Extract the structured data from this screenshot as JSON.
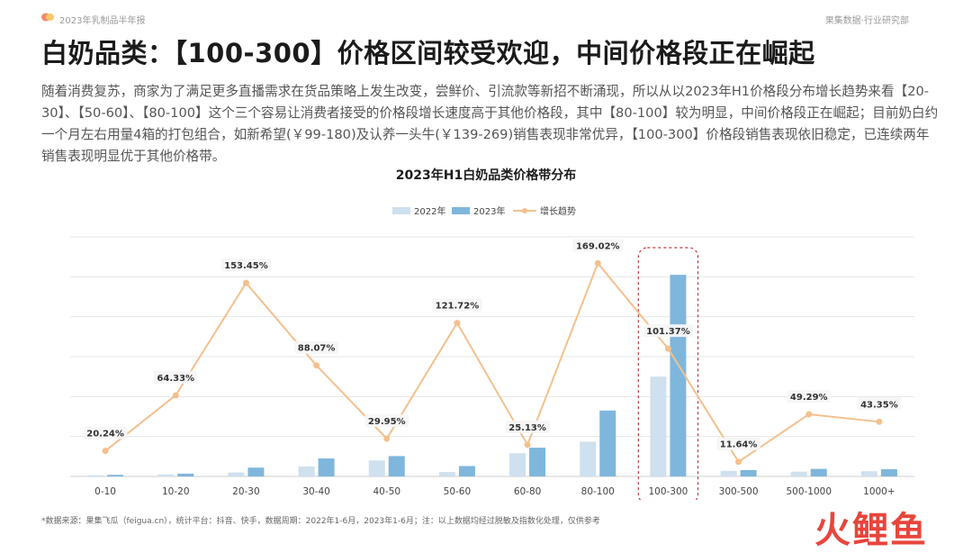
{
  "header": {
    "report_label": "2023年乳制品半年报",
    "org_label": "果集数据·行业研究部"
  },
  "title": "白奶品类：【100-300】价格区间较受欢迎，中间价格段正在崛起",
  "description": "随着消费复苏，商家为了满足更多直播需求在货品策略上发生改变，尝鲜价、引流款等新招不断涌现，所以从以2023年H1价格段分布增长趋势来看【20-30】、【50-60】、【80-100】这个三个容易让消费者接受的价格段增长速度高于其他价格段，其中【80-100】较为明显，中间价格段正在崛起；目前奶白约一个月左右用量4箱的打包组合，如新希望(￥99-180)及认养一头牛(￥139-269)销售表现非常优异，【100-300】价格段销售表现依旧稳定，已连续两年销售表现明显优于其他价格带。",
  "footnote": "*数据来源：果集飞瓜（feigua.cn），统计平台：抖音、快手，数据周期：2022年1-6月，2023年1-6月；注：以上数据均经过脱敏及指数化处理，仅供参考",
  "watermark": "火鲤鱼",
  "colors": {
    "bar_2022": "#cfe0ee",
    "bar_2023": "#7fb6dc",
    "trend": "#f3c08e",
    "highlight_box": "#c0393b",
    "grid": "#e6e6e6",
    "watermark": "#e8453c"
  },
  "chart_data": {
    "type": "bar",
    "title": "2023年H1白奶品类价格带分布",
    "categories": [
      "0-10",
      "10-20",
      "20-30",
      "30-40",
      "40-50",
      "50-60",
      "60-80",
      "80-100",
      "100-300",
      "300-500",
      "500-1000",
      "1000+"
    ],
    "series": [
      {
        "name": "2022年",
        "kind": "bar",
        "values": [
          0.3,
          0.5,
          1.0,
          2.5,
          4.0,
          1.1,
          5.8,
          8.7,
          25.0,
          1.4,
          1.2,
          1.3
        ]
      },
      {
        "name": "2023年",
        "kind": "bar",
        "values": [
          0.4,
          0.7,
          2.2,
          4.5,
          5.1,
          2.6,
          7.2,
          16.5,
          50.5,
          1.6,
          1.9,
          1.8
        ]
      },
      {
        "name": "增长趋势",
        "kind": "line",
        "values": [
          20.24,
          64.33,
          153.45,
          88.07,
          29.95,
          121.72,
          25.13,
          169.02,
          101.37,
          11.64,
          49.29,
          43.35
        ],
        "labels": [
          "20.24%",
          "64.33%",
          "153.45%",
          "88.07%",
          "29.95%",
          "121.72%",
          "25.13%",
          "169.02%",
          "101.37%",
          "11.64%",
          "49.29%",
          "43.35%"
        ]
      }
    ],
    "bar_ylim": [
      0,
      60
    ],
    "line_ylim": [
      0,
      190
    ],
    "grid": true,
    "legend_position": "top-center",
    "highlight_category": "100-300"
  }
}
